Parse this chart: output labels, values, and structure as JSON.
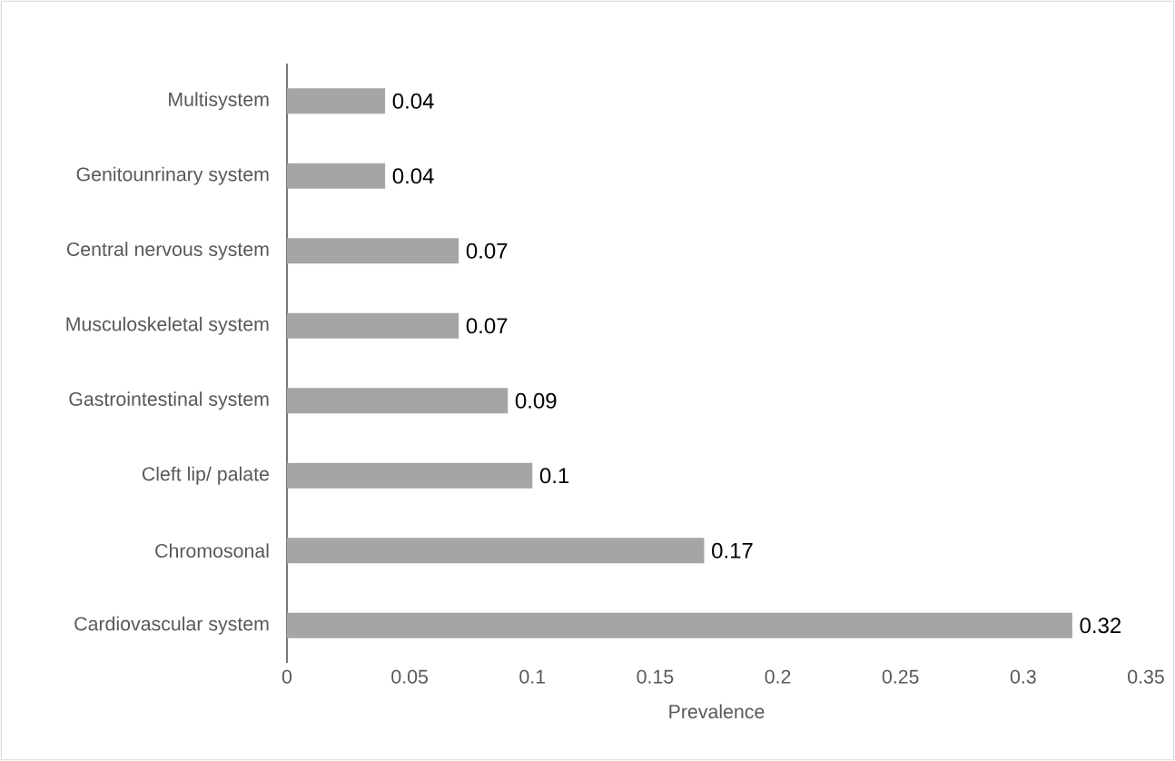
{
  "chart_data": {
    "type": "bar",
    "orientation": "horizontal",
    "xlabel": "Prevalence",
    "categories": [
      "Multisystem",
      "Genitounrinary system",
      "Central nervous system",
      "Musculoskeletal system",
      "Gastrointestinal system",
      "Cleft lip/ palate",
      "Chromosonal",
      "Cardiovascular system"
    ],
    "values": [
      0.04,
      0.04,
      0.07,
      0.07,
      0.09,
      0.1,
      0.17,
      0.32
    ],
    "color": "#a5a5a5",
    "xlim": [
      0,
      0.35
    ],
    "xticks": [
      0,
      0.05,
      0.1,
      0.15,
      0.2,
      0.25,
      0.3,
      0.35
    ],
    "data_labels": true
  }
}
